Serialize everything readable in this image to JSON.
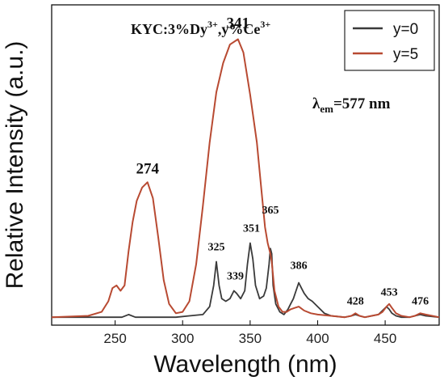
{
  "chart_data": {
    "type": "line",
    "title": "KYC:3%Dy3+,y%Ce3+",
    "title_parts": {
      "base": "KYC:3%Dy",
      "sup1": "3+",
      "mid": ",y%Ce",
      "sup2": "3+"
    },
    "annotation": {
      "lambda": "λ",
      "sub": "em",
      "rest": "=577 nm"
    },
    "xlabel": "Wavelength (nm)",
    "ylabel": "Relative Intensity (a.u.)",
    "xlim": [
      203,
      490
    ],
    "ylim": [
      -0.03,
      1.18
    ],
    "x_ticks": [
      "250",
      "300",
      "350",
      "400",
      "450"
    ],
    "grid": false,
    "legend": {
      "position": "top-right",
      "entries": [
        "y=0",
        "y=5"
      ]
    },
    "series": [
      {
        "name": "y=0",
        "color": "#3a3a3a",
        "x": [
          203,
          240,
          255,
          260,
          265,
          275,
          285,
          295,
          305,
          315,
          320,
          323,
          325,
          327,
          329,
          332,
          335,
          338,
          340,
          343,
          346,
          348,
          350,
          352,
          354,
          357,
          360,
          362,
          364,
          365,
          366,
          367,
          369,
          372,
          375,
          378,
          380,
          382,
          384,
          386,
          388,
          390,
          393,
          396,
          400,
          405,
          410,
          420,
          425,
          428,
          431,
          435,
          440,
          445,
          448,
          451,
          453,
          455,
          458,
          462,
          468,
          472,
          476,
          480,
          490
        ],
        "y": [
          0.0,
          0.0,
          0.0,
          0.01,
          0.0,
          0.0,
          0.0,
          0.0,
          0.005,
          0.01,
          0.04,
          0.12,
          0.21,
          0.12,
          0.07,
          0.06,
          0.07,
          0.1,
          0.09,
          0.07,
          0.1,
          0.2,
          0.28,
          0.22,
          0.12,
          0.07,
          0.08,
          0.11,
          0.2,
          0.26,
          0.24,
          0.12,
          0.05,
          0.02,
          0.01,
          0.03,
          0.05,
          0.07,
          0.1,
          0.13,
          0.11,
          0.09,
          0.07,
          0.06,
          0.04,
          0.015,
          0.005,
          0.0,
          0.005,
          0.01,
          0.005,
          0.0,
          0.005,
          0.01,
          0.025,
          0.04,
          0.03,
          0.015,
          0.005,
          0.0,
          0.0,
          0.005,
          0.01,
          0.005,
          0.0
        ]
      },
      {
        "name": "y=5",
        "color": "#b84a32",
        "x": [
          203,
          230,
          240,
          245,
          248,
          251,
          254,
          257,
          260,
          263,
          266,
          270,
          274,
          278,
          282,
          286,
          290,
          295,
          300,
          305,
          310,
          315,
          320,
          325,
          330,
          335,
          341,
          345,
          350,
          355,
          358,
          361,
          363,
          365,
          366,
          368,
          371,
          374,
          377,
          380,
          383,
          386,
          390,
          395,
          400,
          410,
          420,
          425,
          428,
          431,
          435,
          440,
          445,
          448,
          451,
          453,
          455,
          458,
          462,
          468,
          472,
          476,
          480,
          490
        ],
        "y": [
          0.0,
          0.005,
          0.02,
          0.06,
          0.11,
          0.12,
          0.1,
          0.12,
          0.25,
          0.36,
          0.44,
          0.49,
          0.51,
          0.45,
          0.3,
          0.14,
          0.05,
          0.015,
          0.02,
          0.06,
          0.2,
          0.42,
          0.66,
          0.85,
          0.96,
          1.03,
          1.05,
          1.0,
          0.84,
          0.66,
          0.5,
          0.34,
          0.28,
          0.24,
          0.21,
          0.1,
          0.04,
          0.02,
          0.02,
          0.03,
          0.035,
          0.04,
          0.025,
          0.015,
          0.01,
          0.005,
          0.0,
          0.005,
          0.015,
          0.005,
          0.0,
          0.005,
          0.01,
          0.02,
          0.04,
          0.05,
          0.035,
          0.015,
          0.005,
          0.0,
          0.005,
          0.015,
          0.01,
          0.0
        ]
      }
    ],
    "peak_labels": [
      {
        "text": "274",
        "x": 274,
        "y": 0.53,
        "size": "large"
      },
      {
        "text": "341",
        "x": 341,
        "y": 1.08,
        "size": "large"
      },
      {
        "text": "325",
        "x": 325,
        "y": 0.24,
        "size": "small"
      },
      {
        "text": "339",
        "x": 339,
        "y": 0.13,
        "size": "small"
      },
      {
        "text": "351",
        "x": 351,
        "y": 0.31,
        "size": "small"
      },
      {
        "text": "365",
        "x": 365,
        "y": 0.38,
        "size": "small"
      },
      {
        "text": "386",
        "x": 386,
        "y": 0.17,
        "size": "small"
      },
      {
        "text": "428",
        "x": 428,
        "y": 0.035,
        "size": "small"
      },
      {
        "text": "453",
        "x": 453,
        "y": 0.07,
        "size": "small"
      },
      {
        "text": "476",
        "x": 476,
        "y": 0.035,
        "size": "small"
      }
    ]
  }
}
